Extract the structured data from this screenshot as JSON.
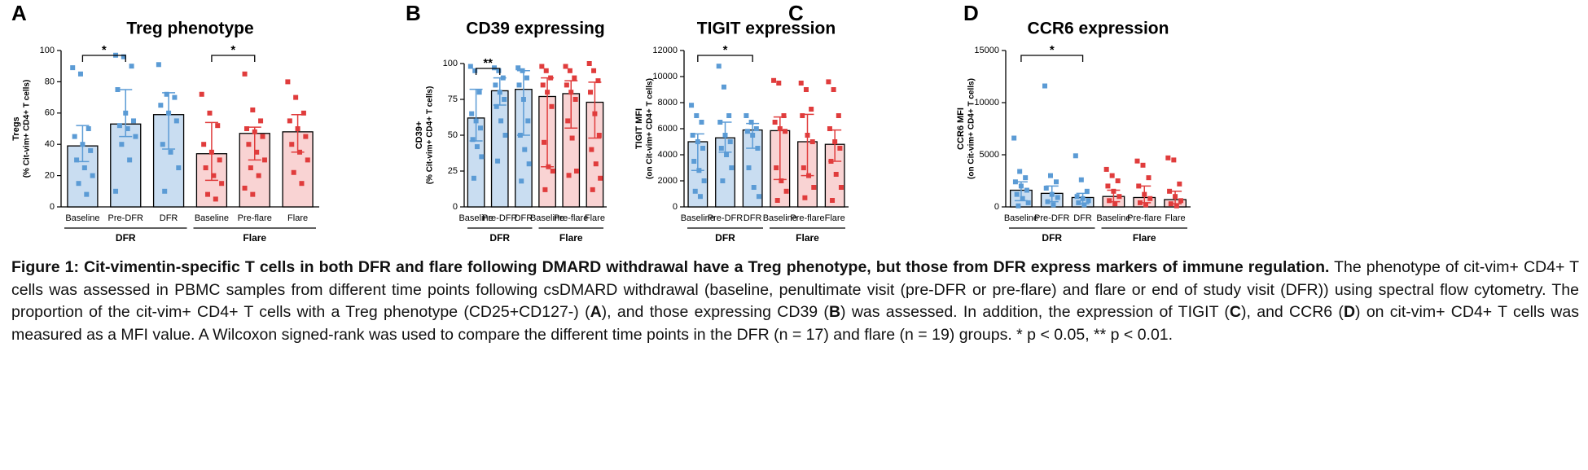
{
  "chart_data": [
    {
      "type": "bar",
      "letter": "A",
      "title": "Treg phenotype",
      "ylabel": [
        "Tregs",
        "(% Cit-vim+ CD4+ T cells)"
      ],
      "categories": [
        "Baseline",
        "Pre-DFR",
        "DFR",
        "Baseline",
        "Pre-flare",
        "Flare"
      ],
      "groups": [
        "DFR",
        "Flare"
      ],
      "colors": [
        "#5b9bd5",
        "#5b9bd5",
        "#5b9bd5",
        "#e03c3c",
        "#e03c3c",
        "#e03c3c"
      ],
      "fills": [
        "#c9ddf1",
        "#c9ddf1",
        "#c9ddf1",
        "#f9d3d3",
        "#f9d3d3",
        "#f9d3d3"
      ],
      "values": [
        39,
        53,
        59,
        34,
        47,
        48
      ],
      "errors": [
        [
          29,
          52
        ],
        [
          45,
          75
        ],
        [
          37,
          73
        ],
        [
          17,
          54
        ],
        [
          30,
          51
        ],
        [
          35,
          59
        ]
      ],
      "points": [
        [
          89,
          85,
          50,
          45,
          40,
          36,
          30,
          25,
          20,
          15,
          8
        ],
        [
          97,
          96,
          90,
          75,
          60,
          55,
          52,
          50,
          45,
          40,
          30,
          10
        ],
        [
          91,
          72,
          70,
          65,
          60,
          55,
          40,
          35,
          25,
          10
        ],
        [
          72,
          60,
          52,
          40,
          35,
          30,
          25,
          20,
          15,
          8,
          5
        ],
        [
          85,
          62,
          55,
          50,
          48,
          45,
          40,
          35,
          30,
          25,
          20,
          12,
          8
        ],
        [
          80,
          70,
          60,
          55,
          50,
          45,
          40,
          35,
          30,
          22,
          15
        ]
      ],
      "significance": [
        {
          "label": "*",
          "from": 0,
          "to": 1
        },
        {
          "label": "*",
          "from": 3,
          "to": 4
        }
      ],
      "ylim": [
        0,
        100
      ],
      "yticks": [
        0,
        20,
        40,
        60,
        80,
        100
      ]
    },
    {
      "type": "bar",
      "letter": "B",
      "title": "CD39 expressing",
      "ylabel": [
        "CD39+",
        "(% Cit-vim+ CD4+ T cells)"
      ],
      "categories": [
        "Baseline",
        "Pre-DFR",
        "DFR",
        "Baseline",
        "Pre-flare",
        "Flare"
      ],
      "groups": [
        "DFR",
        "Flare"
      ],
      "colors": [
        "#5b9bd5",
        "#5b9bd5",
        "#5b9bd5",
        "#e03c3c",
        "#e03c3c",
        "#e03c3c"
      ],
      "fills": [
        "#c9ddf1",
        "#c9ddf1",
        "#c9ddf1",
        "#f9d3d3",
        "#f9d3d3",
        "#f9d3d3"
      ],
      "values": [
        62,
        81,
        82,
        77,
        79,
        73
      ],
      "errors": [
        [
          46,
          82
        ],
        [
          71,
          90
        ],
        [
          50,
          95
        ],
        [
          28,
          90
        ],
        [
          55,
          88
        ],
        [
          48,
          87
        ]
      ],
      "points": [
        [
          98,
          95,
          80,
          65,
          60,
          55,
          47,
          42,
          35,
          20
        ],
        [
          97,
          95,
          90,
          85,
          80,
          75,
          70,
          60,
          50,
          32
        ],
        [
          97,
          95,
          90,
          85,
          75,
          60,
          50,
          40,
          30,
          18
        ],
        [
          98,
          95,
          90,
          85,
          80,
          70,
          45,
          28,
          25,
          12
        ],
        [
          98,
          95,
          90,
          85,
          80,
          75,
          60,
          48,
          25,
          22
        ],
        [
          100,
          95,
          88,
          80,
          65,
          50,
          40,
          30,
          20,
          12
        ]
      ],
      "significance": [
        {
          "label": "**",
          "from": 0,
          "to": 1
        }
      ],
      "ylim": [
        0,
        100
      ],
      "yticks": [
        0,
        25,
        50,
        75,
        100
      ]
    },
    {
      "type": "bar",
      "letter": "C",
      "title": "TIGIT expression",
      "ylabel": [
        "TIGIT MFI",
        "(on Cit-vim+ CD4+ T cells)"
      ],
      "categories": [
        "Baseline",
        "Pre-DFR",
        "DFR",
        "Baseline",
        "Pre-flare",
        "Flare"
      ],
      "groups": [
        "DFR",
        "Flare"
      ],
      "colors": [
        "#5b9bd5",
        "#5b9bd5",
        "#5b9bd5",
        "#e03c3c",
        "#e03c3c",
        "#e03c3c"
      ],
      "fills": [
        "#c9ddf1",
        "#c9ddf1",
        "#c9ddf1",
        "#f9d3d3",
        "#f9d3d3",
        "#f9d3d3"
      ],
      "values": [
        5000,
        5300,
        5900,
        5850,
        5000,
        4800
      ],
      "errors": [
        [
          2800,
          5600
        ],
        [
          4200,
          6500
        ],
        [
          4500,
          6400
        ],
        [
          2100,
          6900
        ],
        [
          2400,
          7100
        ],
        [
          3500,
          5900
        ]
      ],
      "points": [
        [
          7800,
          7000,
          6500,
          5500,
          5000,
          4500,
          3500,
          2800,
          2000,
          1200,
          800
        ],
        [
          10800,
          9200,
          7000,
          6500,
          5500,
          5000,
          4500,
          4000,
          3000,
          2000
        ],
        [
          7000,
          6500,
          6000,
          5800,
          5500,
          4500,
          3000,
          1500,
          800
        ],
        [
          9700,
          9500,
          7000,
          6500,
          6000,
          5800,
          3000,
          2000,
          1200,
          500
        ],
        [
          9500,
          9000,
          7500,
          7000,
          5500,
          5000,
          3000,
          2400,
          1500,
          700
        ],
        [
          9600,
          9000,
          7000,
          6000,
          5000,
          4500,
          3500,
          2500,
          1500,
          500
        ]
      ],
      "significance": [
        {
          "label": "*",
          "from": 0,
          "to": 2
        }
      ],
      "ylim": [
        0,
        12000
      ],
      "yticks": [
        0,
        2000,
        4000,
        6000,
        8000,
        10000,
        12000
      ]
    },
    {
      "type": "bar",
      "letter": "D",
      "title": "CCR6 expression",
      "ylabel": [
        "CCR6 MFI",
        "(on Cit-vim+ CD4+ T cells)"
      ],
      "categories": [
        "Baseline",
        "Pre-DFR",
        "DFR",
        "Baseline",
        "Pre-flare",
        "Flare"
      ],
      "groups": [
        "DFR",
        "Flare"
      ],
      "colors": [
        "#5b9bd5",
        "#5b9bd5",
        "#5b9bd5",
        "#e03c3c",
        "#e03c3c",
        "#e03c3c"
      ],
      "fills": [
        "#c9ddf1",
        "#c9ddf1",
        "#c9ddf1",
        "#f9d3d3",
        "#f9d3d3",
        "#f9d3d3"
      ],
      "values": [
        1600,
        1300,
        900,
        1000,
        900,
        700
      ],
      "errors": [
        [
          600,
          2400
        ],
        [
          500,
          2000
        ],
        [
          300,
          1300
        ],
        [
          500,
          1600
        ],
        [
          400,
          2000
        ],
        [
          300,
          1500
        ]
      ],
      "points": [
        [
          6600,
          3400,
          2800,
          2400,
          2000,
          1600,
          1200,
          800,
          400,
          100
        ],
        [
          11600,
          3000,
          2400,
          1800,
          1200,
          900,
          500,
          200
        ],
        [
          4900,
          2600,
          1500,
          1000,
          800,
          600,
          400,
          200
        ],
        [
          3600,
          3000,
          2500,
          2000,
          1500,
          1000,
          600,
          300
        ],
        [
          4400,
          4000,
          2800,
          2000,
          1200,
          800,
          400,
          200
        ],
        [
          4700,
          4500,
          2200,
          1500,
          1000,
          600,
          300,
          100
        ]
      ],
      "significance": [
        {
          "label": "*",
          "from": 0,
          "to": 2
        }
      ],
      "ylim": [
        0,
        15000
      ],
      "yticks": [
        0,
        5000,
        10000,
        15000
      ]
    }
  ],
  "caption": {
    "title": "Figure 1: Cit-vimentin-specific T cells in both DFR and flare following DMARD withdrawal have a Treg phenotype, but those from DFR express markers of immune regulation.",
    "segments": [
      " The phenotype of cit-vim+ CD4+ T cells was assessed in PBMC samples from different time points following csDMARD withdrawal (baseline, penultimate visit (pre-DFR or pre-flare) and flare or end of study visit (DFR)) using spectral flow cytometry. The proportion of the cit-vim+ CD4+ T cells with a Treg phenotype (CD25+CD127-) (",
      "A",
      "), and those expressing CD39 (",
      "B",
      ") was assessed. In addition, the expression of TIGIT (",
      "C",
      "), and CCR6 (",
      "D",
      ") on cit-vim+ CD4+ T cells was measured as a MFI value. A Wilcoxon signed-rank was used to compare the different time points in the DFR (n = 17) and flare (n = 19) groups. * p < 0.05, ** p < 0.01."
    ]
  }
}
